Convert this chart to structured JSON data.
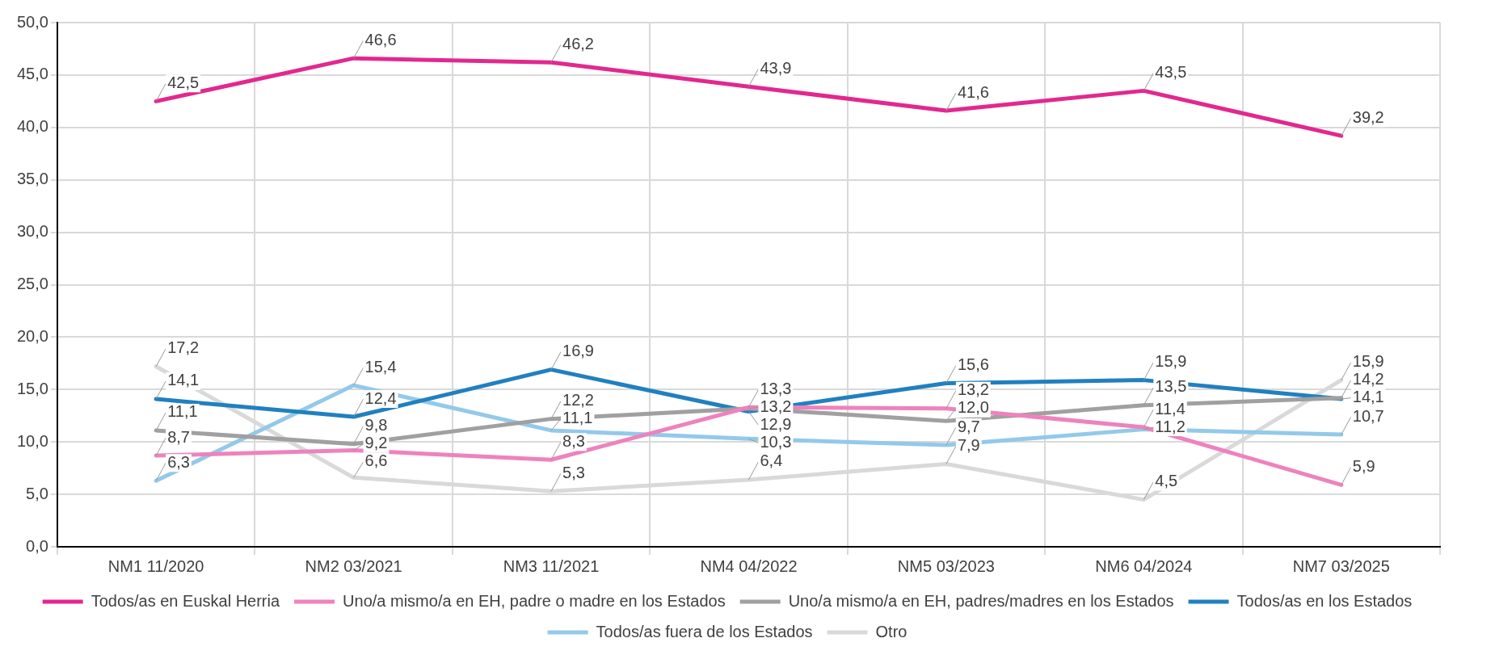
{
  "chart_data": {
    "type": "line",
    "categories": [
      "NM1 11/2020",
      "NM2 03/2021",
      "NM3 11/2021",
      "NM4 04/2022",
      "NM5 03/2023",
      "NM6 04/2024",
      "NM7 03/2025"
    ],
    "ylim": [
      0,
      50
    ],
    "yticks": [
      {
        "value": 0,
        "label": "0,0"
      },
      {
        "value": 5,
        "label": "5,0"
      },
      {
        "value": 10,
        "label": "10,0"
      },
      {
        "value": 15,
        "label": "15,0"
      },
      {
        "value": 20,
        "label": "20,0"
      },
      {
        "value": 25,
        "label": "25,0"
      },
      {
        "value": 30,
        "label": "30,0"
      },
      {
        "value": 35,
        "label": "35,0"
      },
      {
        "value": 40,
        "label": "40,0"
      },
      {
        "value": 45,
        "label": "45,0"
      },
      {
        "value": 50,
        "label": "50,0"
      }
    ],
    "grid": true,
    "legend": "bottom",
    "marker": "none",
    "line_style": "solid",
    "series": [
      {
        "name": "Todos/as en Euskal Herria",
        "color": "#e2288f",
        "values": [
          42.5,
          46.6,
          46.2,
          43.9,
          41.6,
          43.5,
          39.2
        ],
        "value_labels": [
          "42,5",
          "46,6",
          "46,2",
          "43,9",
          "41,6",
          "43,5",
          "39,2"
        ]
      },
      {
        "name": "Uno/a mismo/a en EH, padre o madre en los Estados",
        "color": "#ee82be",
        "values": [
          8.7,
          9.2,
          8.3,
          13.3,
          13.2,
          11.4,
          5.9
        ],
        "value_labels": [
          "8,7",
          "9,2",
          "8,3",
          "13,3",
          "13,2",
          "11,4",
          "5,9"
        ]
      },
      {
        "name": "Uno/a mismo/a en EH, padres/madres en los Estados",
        "color": "#a0a0a0",
        "values": [
          11.1,
          9.8,
          12.2,
          13.2,
          12.0,
          13.5,
          14.2
        ],
        "value_labels": [
          "11,1",
          "9,8",
          "12,2",
          "13,2",
          "12,0",
          "13,5",
          "14,2"
        ]
      },
      {
        "name": "Todos/as en los Estados",
        "color": "#2080c0",
        "values": [
          14.1,
          12.4,
          16.9,
          12.9,
          15.6,
          15.9,
          14.1
        ],
        "value_labels": [
          "14,1",
          "12,4",
          "16,9",
          "12,9",
          "15,6",
          "15,9",
          "14,1"
        ]
      },
      {
        "name": "Todos/as fuera de los Estados",
        "color": "#93c9ea",
        "values": [
          6.3,
          15.4,
          11.1,
          10.3,
          9.7,
          11.2,
          10.7
        ],
        "value_labels": [
          "6,3",
          "15,4",
          "11,1",
          "10,3",
          "9,7",
          "11,2",
          "10,7"
        ]
      },
      {
        "name": "Otro",
        "color": "#d9d9d9",
        "values": [
          17.2,
          6.6,
          5.3,
          6.4,
          7.9,
          4.5,
          15.9
        ],
        "value_labels": [
          "17,2",
          "6,6",
          "5,3",
          "6,4",
          "7,9",
          "4,5",
          "15,9"
        ]
      }
    ]
  }
}
